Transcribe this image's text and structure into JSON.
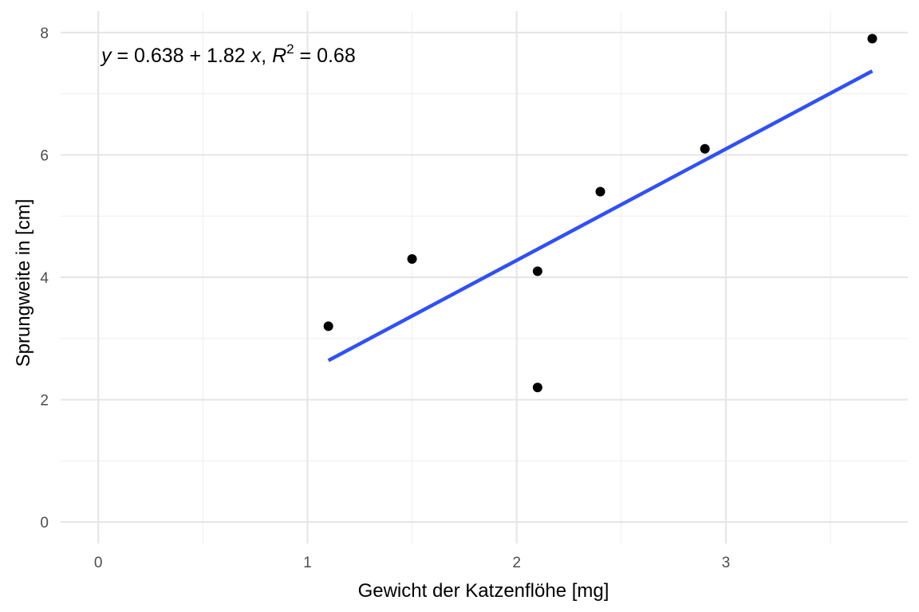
{
  "chart_data": {
    "type": "scatter",
    "xlabel": "Gewicht der Katzenflöhe [mg]",
    "ylabel": "Sprungweite in [cm]",
    "xlim": [
      -0.18,
      3.87
    ],
    "ylim": [
      -0.35,
      8.35
    ],
    "x_ticks": [
      0,
      1,
      2,
      3
    ],
    "x_tick_labels": [
      "0",
      "1",
      "2",
      "3"
    ],
    "y_ticks": [
      0,
      2,
      4,
      6,
      8
    ],
    "y_tick_labels": [
      "0",
      "2",
      "4",
      "6",
      "8"
    ],
    "x_minor": [
      0.5,
      1.5,
      2.5,
      3.5
    ],
    "y_minor": [
      1,
      3,
      5,
      7
    ],
    "grid": true,
    "points": [
      {
        "x": 1.1,
        "y": 3.2
      },
      {
        "x": 1.5,
        "y": 4.3
      },
      {
        "x": 2.1,
        "y": 4.1
      },
      {
        "x": 2.1,
        "y": 2.2
      },
      {
        "x": 2.4,
        "y": 5.4
      },
      {
        "x": 2.9,
        "y": 6.1
      },
      {
        "x": 3.7,
        "y": 7.9
      }
    ],
    "fit_line": {
      "intercept": 0.638,
      "slope": 1.82,
      "x_from": 1.1,
      "x_to": 3.7,
      "color": "#3050f8"
    },
    "point_color": "#000000",
    "annotation": {
      "y_var": "y",
      "eq_rhs": " = 0.638 + 1.82 ",
      "x_var": "x",
      "sep": ", ",
      "r_var": "R",
      "r_sup": "2",
      "r_rhs": " = 0.68"
    }
  }
}
